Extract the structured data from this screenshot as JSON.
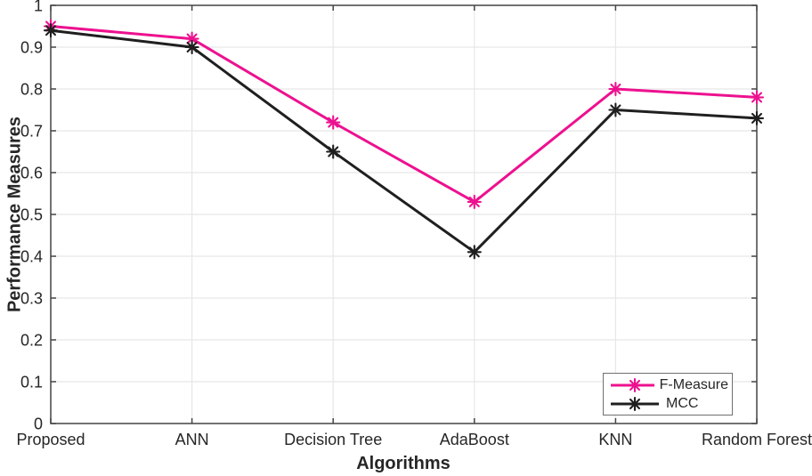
{
  "chart_data": {
    "type": "line",
    "title": "",
    "xlabel": "Algorithms",
    "ylabel": "Performance Measures",
    "categories": [
      "Proposed",
      "ANN",
      "Decision Tree",
      "AdaBoost",
      "KNN",
      "Random Forest"
    ],
    "series": [
      {
        "name": "F-Measure",
        "color": "#ED118F",
        "marker": "asterisk",
        "values": [
          0.95,
          0.92,
          0.72,
          0.53,
          0.8,
          0.78
        ]
      },
      {
        "name": "MCC",
        "color": "#1F1F1F",
        "marker": "asterisk",
        "values": [
          0.94,
          0.9,
          0.65,
          0.41,
          0.75,
          0.73
        ]
      }
    ],
    "ylim": [
      0,
      1
    ],
    "y_ticks": [
      0,
      0.1,
      0.2,
      0.3,
      0.4,
      0.5,
      0.6,
      0.7,
      0.8,
      0.9,
      1
    ],
    "y_tick_labels": [
      "0",
      "0.1",
      "0.2",
      "0.3",
      "0.4",
      "0.5",
      "0.6",
      "0.7",
      "0.8",
      "0.9",
      "1"
    ],
    "grid": true,
    "legend_position": "bottom-right"
  },
  "colors": {
    "background": "#ffffff",
    "grid": "#e7e7e7",
    "axis": "#444444",
    "tick_text": "#262626",
    "legend_border": "#707070"
  }
}
